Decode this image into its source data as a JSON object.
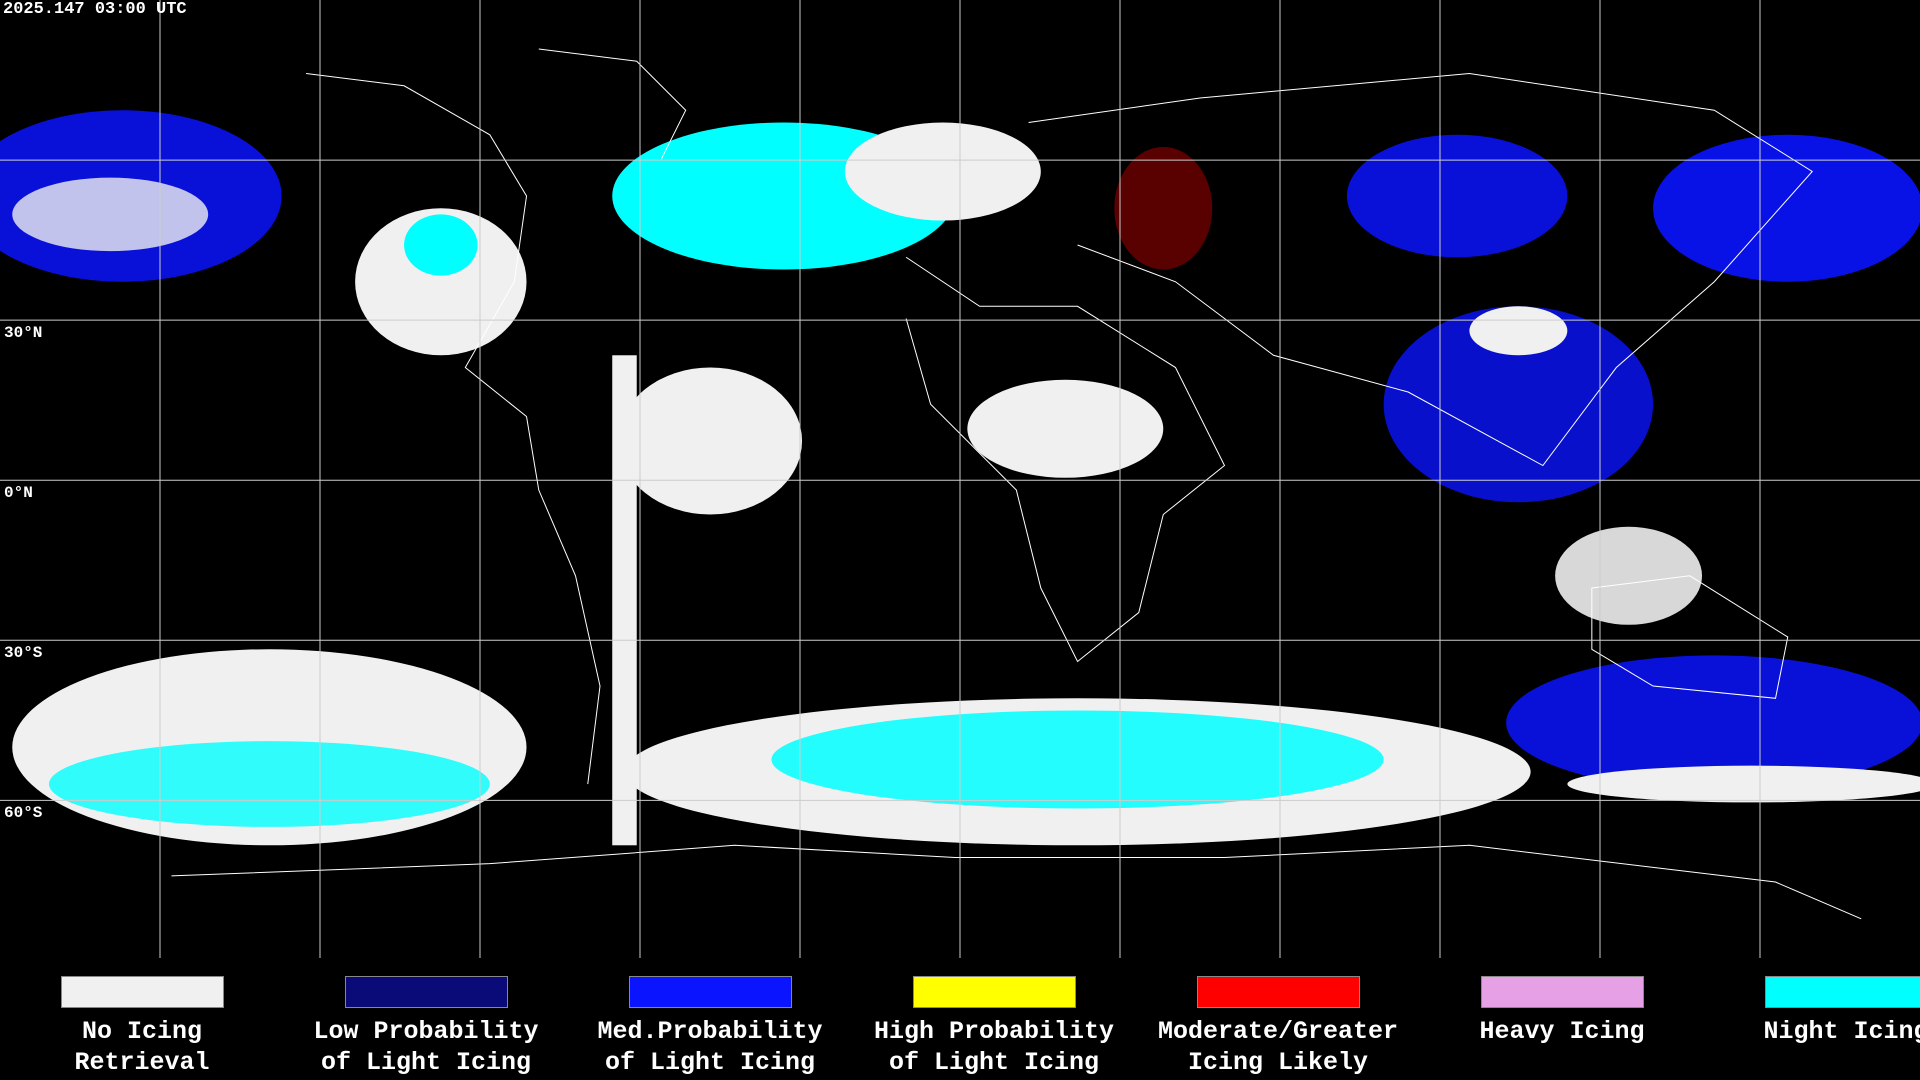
{
  "header": {
    "timestamp": "2025.147 03:00 UTC"
  },
  "map": {
    "latitude_labels": [
      "30°N",
      "0°N",
      "30°S",
      "60°S"
    ]
  },
  "legend": [
    {
      "label_lines": [
        "No Icing",
        "Retrieval"
      ],
      "color": "#f0f0f0"
    },
    {
      "label_lines": [
        "Low Probability",
        "of Light Icing"
      ],
      "color": "#0a0a78"
    },
    {
      "label_lines": [
        "Med.Probability",
        "of Light Icing"
      ],
      "color": "#0a14ff"
    },
    {
      "label_lines": [
        "High Probability",
        "of Light Icing"
      ],
      "color": "#ffff00"
    },
    {
      "label_lines": [
        "Moderate/Greater",
        "Icing Likely"
      ],
      "color": "#ff0000"
    },
    {
      "label_lines": [
        "Heavy Icing"
      ],
      "color": "#e6a0e6"
    },
    {
      "label_lines": [
        "Night Icing"
      ],
      "color": "#00ffff"
    }
  ]
}
